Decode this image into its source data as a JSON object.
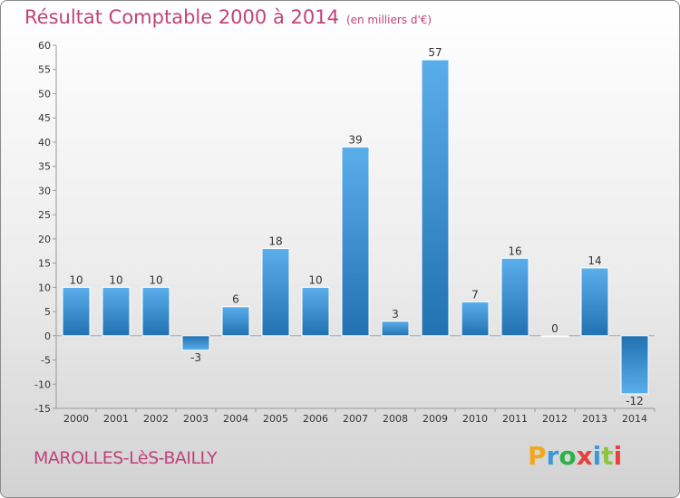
{
  "title": "Résultat Comptable 2000 à 2014",
  "unit": "(en milliers d'€)",
  "town": "MAROLLES-LèS-BAILLY",
  "brand": {
    "letters": [
      "P",
      "r",
      "o",
      "x",
      "i",
      "t",
      "i"
    ],
    "colors": [
      "#f2a81d",
      "#3a9ad9",
      "#2db24a",
      "#e8413b",
      "#3a9ad9",
      "#8cc63f",
      "#e8413b"
    ]
  },
  "chart_data": {
    "type": "bar",
    "categories": [
      "2000",
      "2001",
      "2002",
      "2003",
      "2004",
      "2005",
      "2006",
      "2007",
      "2008",
      "2009",
      "2010",
      "2011",
      "2012",
      "2013",
      "2014"
    ],
    "values": [
      10,
      10,
      10,
      -3,
      6,
      18,
      10,
      39,
      3,
      57,
      7,
      16,
      0,
      14,
      -12
    ],
    "title": "Résultat Comptable 2000 à 2014",
    "ylim": [
      -15,
      60
    ],
    "yticks": [
      -15,
      -10,
      -5,
      0,
      5,
      10,
      15,
      20,
      25,
      30,
      35,
      40,
      45,
      50,
      55,
      60
    ],
    "grid": false,
    "bar_color": "#3f96d8"
  }
}
